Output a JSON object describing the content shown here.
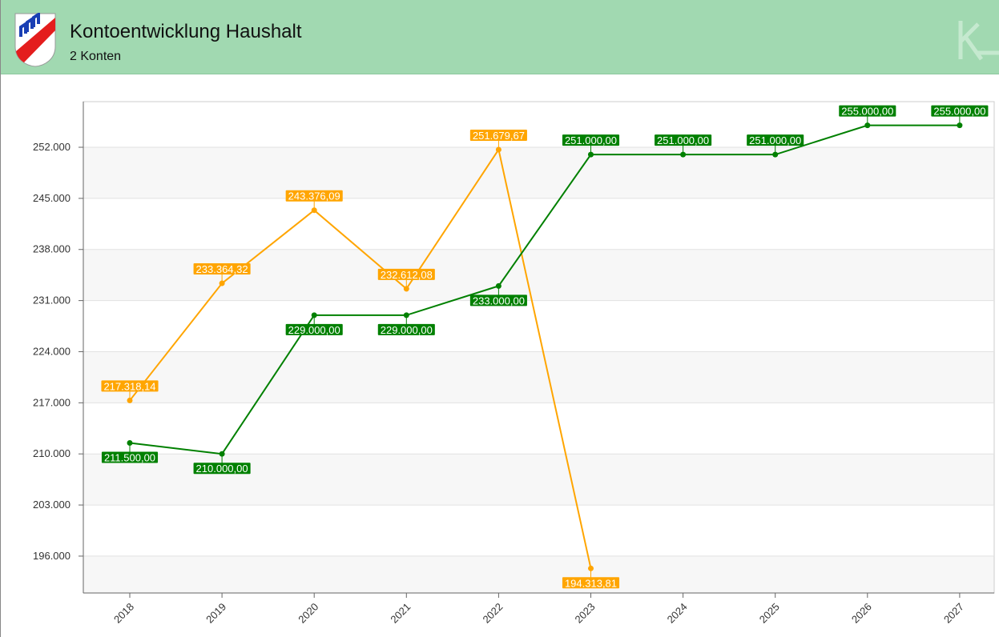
{
  "header": {
    "title": "Kontoentwicklung Haushalt",
    "subtitle": "2 Konten"
  },
  "chart_data": {
    "type": "line",
    "categories": [
      "2018",
      "2019",
      "2020",
      "2021",
      "2022",
      "2023",
      "2024",
      "2025",
      "2026",
      "2027"
    ],
    "series": [
      {
        "color": "#ffa500",
        "values": [
          217318.14,
          233364.32,
          243376.09,
          232612.08,
          251679.67,
          194313.81,
          null,
          null,
          null,
          null
        ],
        "value_labels": [
          "217.318,14",
          "233.364,32",
          "243.376,09",
          "232.612,08",
          "251.679,67",
          "194.313,81",
          null,
          null,
          null,
          null
        ]
      },
      {
        "color": "#008000",
        "values": [
          211500,
          210000,
          229000,
          229000,
          233000,
          251000,
          251000,
          251000,
          255000,
          255000
        ],
        "value_labels": [
          "211.500,00",
          "210.000,00",
          "229.000,00",
          "229.000,00",
          "233.000,00",
          "251.000,00",
          "251.000,00",
          "251.000,00",
          "255.000,00",
          "255.000,00"
        ]
      }
    ],
    "ylim": [
      190950,
      258250
    ],
    "yticks": [
      {
        "value": 196000,
        "label": "196.000"
      },
      {
        "value": 203000,
        "label": "203.000"
      },
      {
        "value": 210000,
        "label": "210.000"
      },
      {
        "value": 217000,
        "label": "217.000"
      },
      {
        "value": 224000,
        "label": "224.000"
      },
      {
        "value": 231000,
        "label": "231.000"
      },
      {
        "value": 238000,
        "label": "238.000"
      },
      {
        "value": 245000,
        "label": "245.000"
      },
      {
        "value": 252000,
        "label": "252.000"
      }
    ],
    "grid": true
  }
}
